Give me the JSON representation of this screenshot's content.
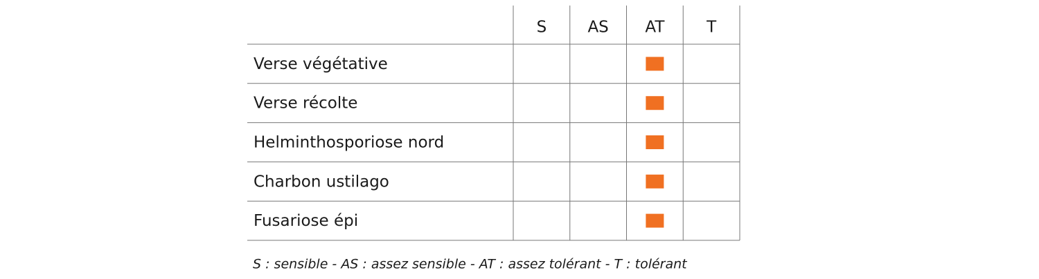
{
  "table": {
    "columns": [
      "S",
      "AS",
      "AT",
      "T"
    ],
    "rows": [
      {
        "label": "Verse végétative",
        "rating": "AT"
      },
      {
        "label": "Verse récolte",
        "rating": "AT"
      },
      {
        "label": "Helminthosporiose nord",
        "rating": "AT"
      },
      {
        "label": "Charbon ustilago",
        "rating": "AT"
      },
      {
        "label": "Fusariose épi",
        "rating": "AT"
      }
    ],
    "mark_color": "#f07022"
  },
  "footnote": "S : sensible - AS : assez sensible - AT : assez tolérant - T : tolérant"
}
